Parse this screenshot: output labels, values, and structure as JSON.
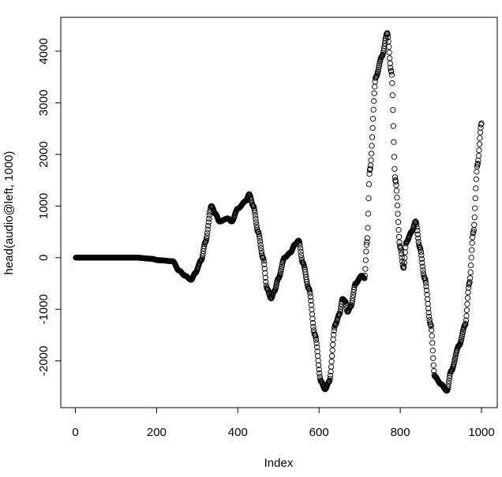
{
  "chart_data": {
    "type": "scatter",
    "marker": "open-circle",
    "xlabel": "Index",
    "ylabel": "head(audio@left, 1000)",
    "xlim": [
      1,
      1000
    ],
    "ylim": [
      -2600,
      4350
    ],
    "x_ticks": [
      0,
      200,
      400,
      600,
      800,
      1000
    ],
    "y_ticks": [
      -2000,
      -1000,
      0,
      1000,
      2000,
      3000,
      4000
    ],
    "grid": false,
    "legend": "none",
    "point_color": "#000000",
    "n_points": 1000,
    "keypoints": [
      [
        1,
        0
      ],
      [
        150,
        0
      ],
      [
        185,
        -20
      ],
      [
        205,
        -50
      ],
      [
        240,
        -70
      ],
      [
        255,
        -250
      ],
      [
        270,
        -350
      ],
      [
        285,
        -430
      ],
      [
        295,
        -300
      ],
      [
        310,
        -50
      ],
      [
        320,
        300
      ],
      [
        335,
        1000
      ],
      [
        345,
        850
      ],
      [
        355,
        700
      ],
      [
        375,
        760
      ],
      [
        385,
        700
      ],
      [
        400,
        950
      ],
      [
        420,
        1100
      ],
      [
        428,
        1230
      ],
      [
        438,
        1000
      ],
      [
        450,
        500
      ],
      [
        462,
        0
      ],
      [
        472,
        -600
      ],
      [
        482,
        -790
      ],
      [
        490,
        -650
      ],
      [
        500,
        -400
      ],
      [
        515,
        0
      ],
      [
        530,
        100
      ],
      [
        540,
        250
      ],
      [
        550,
        330
      ],
      [
        560,
        -100
      ],
      [
        575,
        -600
      ],
      [
        590,
        -1500
      ],
      [
        605,
        -2400
      ],
      [
        615,
        -2550
      ],
      [
        625,
        -2400
      ],
      [
        640,
        -1300
      ],
      [
        650,
        -1100
      ],
      [
        658,
        -800
      ],
      [
        665,
        -850
      ],
      [
        670,
        -1050
      ],
      [
        678,
        -950
      ],
      [
        690,
        -500
      ],
      [
        705,
        -350
      ],
      [
        712,
        -400
      ],
      [
        718,
        300
      ],
      [
        725,
        1700
      ],
      [
        740,
        3500
      ],
      [
        755,
        3900
      ],
      [
        768,
        4350
      ],
      [
        778,
        3600
      ],
      [
        788,
        1500
      ],
      [
        800,
        200
      ],
      [
        808,
        -200
      ],
      [
        815,
        300
      ],
      [
        828,
        500
      ],
      [
        838,
        700
      ],
      [
        848,
        200
      ],
      [
        860,
        -400
      ],
      [
        875,
        -1300
      ],
      [
        885,
        -2300
      ],
      [
        900,
        -2450
      ],
      [
        915,
        -2580
      ],
      [
        925,
        -2200
      ],
      [
        945,
        -1700
      ],
      [
        960,
        -1300
      ],
      [
        970,
        -500
      ],
      [
        980,
        500
      ],
      [
        990,
        1800
      ],
      [
        1000,
        2600
      ]
    ]
  }
}
